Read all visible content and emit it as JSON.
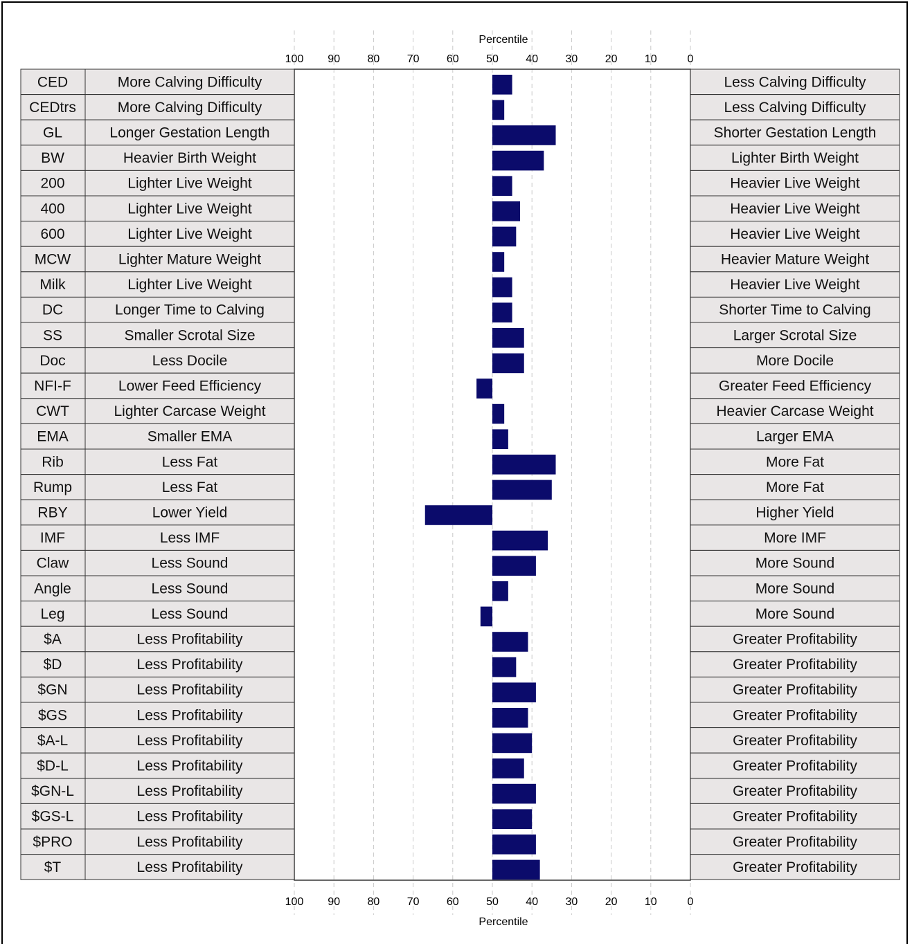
{
  "colors": {
    "bar": "#0b0b6b",
    "cell_bg": "#e9e6e6",
    "grid": "#c8c8c8",
    "border": "#333333"
  },
  "chart_data": {
    "type": "bar",
    "orientation": "horizontal",
    "xlabel": "Percentile",
    "xlim": [
      100,
      0
    ],
    "x_ticks": [
      100,
      90,
      80,
      70,
      60,
      50,
      40,
      30,
      20,
      10,
      0
    ],
    "grid": true,
    "baseline": 50,
    "rows": [
      {
        "trait": "CED",
        "low": "More Calving Difficulty",
        "high": "Less Calving Difficulty",
        "value": 45
      },
      {
        "trait": "CEDtrs",
        "low": "More Calving Difficulty",
        "high": "Less Calving Difficulty",
        "value": 47
      },
      {
        "trait": "GL",
        "low": "Longer Gestation Length",
        "high": "Shorter Gestation Length",
        "value": 34
      },
      {
        "trait": "BW",
        "low": "Heavier Birth Weight",
        "high": "Lighter Birth Weight",
        "value": 37
      },
      {
        "trait": "200",
        "low": "Lighter Live Weight",
        "high": "Heavier Live Weight",
        "value": 45
      },
      {
        "trait": "400",
        "low": "Lighter Live Weight",
        "high": "Heavier Live Weight",
        "value": 43
      },
      {
        "trait": "600",
        "low": "Lighter Live Weight",
        "high": "Heavier Live Weight",
        "value": 44
      },
      {
        "trait": "MCW",
        "low": "Lighter Mature Weight",
        "high": "Heavier Mature Weight",
        "value": 47
      },
      {
        "trait": "Milk",
        "low": "Lighter Live Weight",
        "high": "Heavier Live Weight",
        "value": 45
      },
      {
        "trait": "DC",
        "low": "Longer Time to Calving",
        "high": "Shorter Time to Calving",
        "value": 45
      },
      {
        "trait": "SS",
        "low": "Smaller Scrotal Size",
        "high": "Larger Scrotal Size",
        "value": 42
      },
      {
        "trait": "Doc",
        "low": "Less Docile",
        "high": "More Docile",
        "value": 42
      },
      {
        "trait": "NFI-F",
        "low": "Lower Feed Efficiency",
        "high": "Greater Feed Efficiency",
        "value": 54
      },
      {
        "trait": "CWT",
        "low": "Lighter Carcase Weight",
        "high": "Heavier Carcase Weight",
        "value": 47
      },
      {
        "trait": "EMA",
        "low": "Smaller EMA",
        "high": "Larger EMA",
        "value": 46
      },
      {
        "trait": "Rib",
        "low": "Less Fat",
        "high": "More Fat",
        "value": 34
      },
      {
        "trait": "Rump",
        "low": "Less Fat",
        "high": "More Fat",
        "value": 35
      },
      {
        "trait": "RBY",
        "low": "Lower Yield",
        "high": "Higher Yield",
        "value": 67
      },
      {
        "trait": "IMF",
        "low": "Less IMF",
        "high": "More IMF",
        "value": 36
      },
      {
        "trait": "Claw",
        "low": "Less Sound",
        "high": "More Sound",
        "value": 39
      },
      {
        "trait": "Angle",
        "low": "Less Sound",
        "high": "More Sound",
        "value": 46
      },
      {
        "trait": "Leg",
        "low": "Less Sound",
        "high": "More Sound",
        "value": 53
      },
      {
        "trait": "$A",
        "low": "Less Profitability",
        "high": "Greater Profitability",
        "value": 41
      },
      {
        "trait": "$D",
        "low": "Less Profitability",
        "high": "Greater Profitability",
        "value": 44
      },
      {
        "trait": "$GN",
        "low": "Less Profitability",
        "high": "Greater Profitability",
        "value": 39
      },
      {
        "trait": "$GS",
        "low": "Less Profitability",
        "high": "Greater Profitability",
        "value": 41
      },
      {
        "trait": "$A-L",
        "low": "Less Profitability",
        "high": "Greater Profitability",
        "value": 40
      },
      {
        "trait": "$D-L",
        "low": "Less Profitability",
        "high": "Greater Profitability",
        "value": 42
      },
      {
        "trait": "$GN-L",
        "low": "Less Profitability",
        "high": "Greater Profitability",
        "value": 39
      },
      {
        "trait": "$GS-L",
        "low": "Less Profitability",
        "high": "Greater Profitability",
        "value": 40
      },
      {
        "trait": "$PRO",
        "low": "Less Profitability",
        "high": "Greater Profitability",
        "value": 39
      },
      {
        "trait": "$T",
        "low": "Less Profitability",
        "high": "Greater Profitability",
        "value": 38
      }
    ]
  }
}
